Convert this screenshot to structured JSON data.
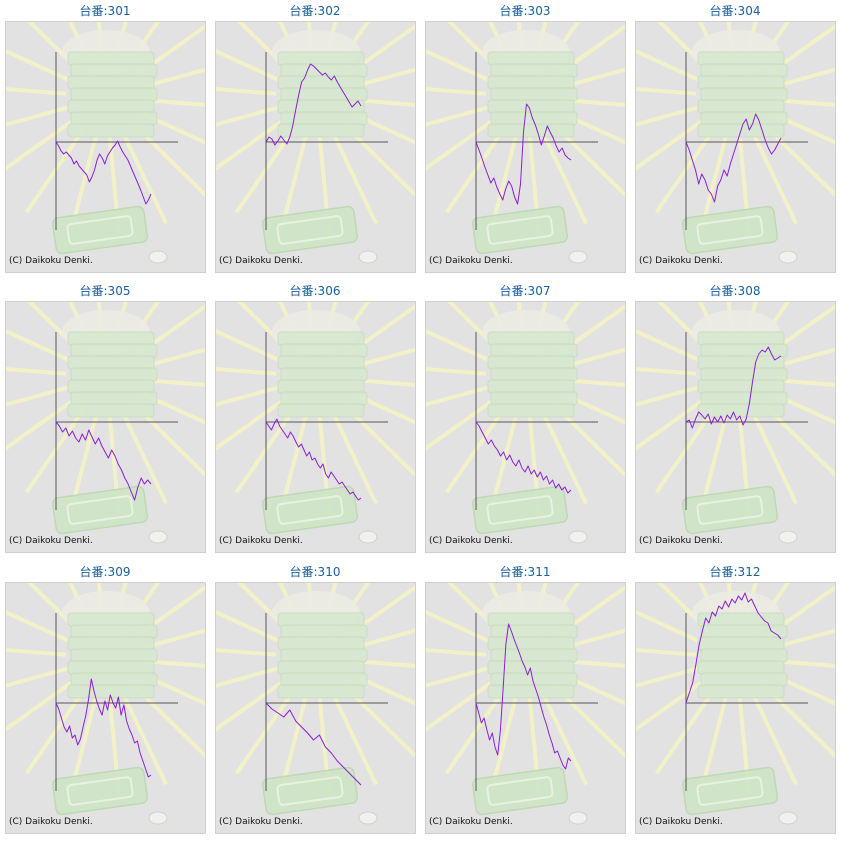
{
  "copyright": "(C) Daikoku Denki.",
  "colors": {
    "line": "#8a1fd4",
    "axis": "#555555",
    "background": "#e2e2e2",
    "title": "#1a5fa0"
  },
  "chart_data": [
    {
      "type": "line",
      "title": "台番:301",
      "y": [
        0,
        -4,
        -9,
        -12,
        -10,
        -13,
        -16,
        -22,
        -19,
        -24,
        -27,
        -30,
        -33,
        -40,
        -35,
        -28,
        -18,
        -12,
        -16,
        -22,
        -14,
        -10,
        -6,
        -3,
        1,
        -5,
        -10,
        -14,
        -18,
        -24,
        -30,
        -36,
        -42,
        -48,
        -55,
        -62,
        -58,
        -52
      ]
    },
    {
      "type": "line",
      "title": "台番:302",
      "y": [
        0,
        5,
        3,
        -3,
        1,
        6,
        2,
        -2,
        5,
        16,
        32,
        47,
        60,
        64,
        72,
        78,
        76,
        73,
        70,
        67,
        69,
        65,
        62,
        66,
        60,
        55,
        50,
        45,
        40,
        35,
        38,
        41,
        36
      ]
    },
    {
      "type": "line",
      "title": "台番:303",
      "y": [
        0,
        -8,
        -16,
        -25,
        -33,
        -41,
        -36,
        -45,
        -52,
        -58,
        -47,
        -39,
        -44,
        -55,
        -62,
        -42,
        10,
        38,
        34,
        24,
        17,
        8,
        -3,
        6,
        16,
        10,
        4,
        -4,
        -10,
        -6,
        -13,
        -16,
        -18
      ]
    },
    {
      "type": "line",
      "title": "台番:304",
      "y": [
        0,
        -8,
        -18,
        -28,
        -42,
        -32,
        -38,
        -48,
        -52,
        -60,
        -44,
        -38,
        -28,
        -34,
        -22,
        -12,
        -2,
        8,
        18,
        23,
        12,
        18,
        28,
        22,
        12,
        2,
        -6,
        -12,
        -8,
        -2,
        4
      ]
    },
    {
      "type": "line",
      "title": "台番:305",
      "y": [
        0,
        -4,
        -10,
        -6,
        -14,
        -9,
        -16,
        -20,
        -12,
        -18,
        -8,
        -15,
        -22,
        -16,
        -24,
        -30,
        -36,
        -28,
        -34,
        -42,
        -48,
        -56,
        -62,
        -70,
        -78,
        -65,
        -56,
        -62,
        -58,
        -62
      ]
    },
    {
      "type": "line",
      "title": "台番:306",
      "y": [
        0,
        -4,
        -8,
        -2,
        3,
        -4,
        -8,
        -12,
        -16,
        -10,
        -14,
        -20,
        -25,
        -22,
        -28,
        -34,
        -30,
        -38,
        -36,
        -42,
        -46,
        -42,
        -52,
        -56,
        -50,
        -54,
        -58,
        -62,
        -60,
        -64,
        -68,
        -72,
        -70,
        -74,
        -78,
        -76
      ]
    },
    {
      "type": "line",
      "title": "台番:307",
      "y": [
        0,
        -4,
        -10,
        -16,
        -22,
        -18,
        -24,
        -28,
        -34,
        -30,
        -38,
        -33,
        -40,
        -44,
        -38,
        -46,
        -50,
        -44,
        -52,
        -48,
        -55,
        -50,
        -58,
        -54,
        -62,
        -58,
        -66,
        -62,
        -68,
        -65,
        -71,
        -68
      ]
    },
    {
      "type": "line",
      "title": "台番:308",
      "y": [
        0,
        2,
        -6,
        3,
        10,
        7,
        3,
        8,
        -2,
        5,
        0,
        6,
        -1,
        7,
        3,
        10,
        2,
        6,
        -3,
        3,
        18,
        40,
        60,
        68,
        72,
        70,
        75,
        68,
        62,
        64,
        66
      ]
    },
    {
      "type": "line",
      "title": "台番:309",
      "y": [
        0,
        -6,
        -15,
        -24,
        -29,
        -23,
        -35,
        -32,
        -42,
        -36,
        -24,
        -12,
        4,
        24,
        12,
        2,
        -6,
        -12,
        2,
        -7,
        8,
        0,
        -5,
        6,
        -12,
        -2,
        -18,
        -26,
        -32,
        -40,
        -38,
        -50,
        -58,
        -66,
        -74,
        -72
      ]
    },
    {
      "type": "line",
      "title": "台番:310",
      "y": [
        0,
        -6,
        -10,
        -14,
        -7,
        -18,
        -24,
        -30,
        -37,
        -32,
        -44,
        -50,
        -58,
        -64,
        -70,
        -76,
        -82
      ]
    },
    {
      "type": "line",
      "title": "台番:311",
      "y": [
        0,
        -10,
        -20,
        -15,
        -27,
        -37,
        -30,
        -44,
        -52,
        -27,
        14,
        59,
        79,
        72,
        64,
        57,
        50,
        42,
        36,
        28,
        35,
        22,
        14,
        6,
        -4,
        -14,
        -22,
        -32,
        -40,
        -50,
        -48,
        -55,
        -62,
        -66,
        -55,
        -58
      ]
    },
    {
      "type": "line",
      "title": "台番:312",
      "y": [
        0,
        10,
        20,
        38,
        58,
        72,
        85,
        80,
        91,
        87,
        97,
        94,
        102,
        96,
        104,
        100,
        107,
        103,
        110,
        101,
        104,
        97,
        90,
        86,
        82,
        80,
        72,
        70,
        68,
        64
      ]
    }
  ]
}
